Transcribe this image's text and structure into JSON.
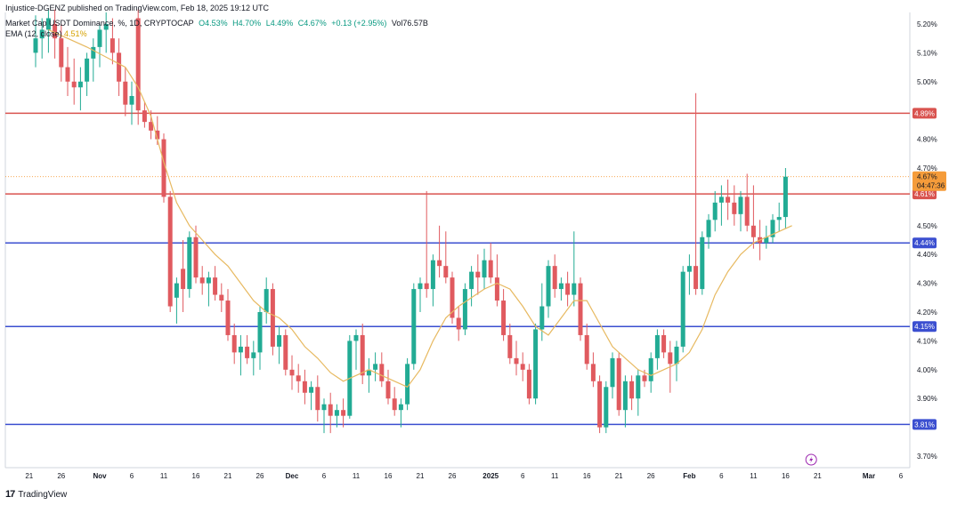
{
  "header": {
    "published": "Injustice-DGENZ published on TradingView.com, Feb 18, 2025 19:12 UTC"
  },
  "legend": {
    "title": "Market Cap USDT Dominance, %, 1D, CRYPTOCAP",
    "open": "O4.53%",
    "high": "H4.70%",
    "low": "L4.49%",
    "close": "C4.67%",
    "change": "+0.13 (+2.95%)",
    "volume": "Vol76.57B",
    "ema_label": "EMA (12, close)",
    "ema_value": "4.51%"
  },
  "footer": {
    "brand": "TradingView",
    "logo": "17"
  },
  "colors": {
    "up": "#22ab94",
    "down": "#e05a5f",
    "ema": "#e7b960",
    "resistance": "#d9534f",
    "support": "#3b4fd0",
    "price_badge": "#f59c3a",
    "axis_text": "#131722"
  },
  "chart_data": {
    "type": "candlestick",
    "ylim": [
      3.66,
      5.24
    ],
    "y_ticks": [
      "5.20%",
      "5.10%",
      "5.00%",
      "4.80%",
      "4.70%",
      "4.50%",
      "4.40%",
      "4.30%",
      "4.20%",
      "4.10%",
      "4.00%",
      "3.90%",
      "3.70%"
    ],
    "y_tick_values": [
      5.2,
      5.1,
      5.0,
      4.8,
      4.7,
      4.5,
      4.4,
      4.3,
      4.2,
      4.1,
      4.0,
      3.9,
      3.7
    ],
    "x_ticks": [
      {
        "label": "21",
        "day": -1
      },
      {
        "label": "26",
        "day": 4
      },
      {
        "label": "Nov",
        "day": 10,
        "bold": true
      },
      {
        "label": "6",
        "day": 15
      },
      {
        "label": "11",
        "day": 20
      },
      {
        "label": "16",
        "day": 25
      },
      {
        "label": "21",
        "day": 30
      },
      {
        "label": "26",
        "day": 35
      },
      {
        "label": "Dec",
        "day": 40,
        "bold": true
      },
      {
        "label": "6",
        "day": 45
      },
      {
        "label": "11",
        "day": 50
      },
      {
        "label": "16",
        "day": 55
      },
      {
        "label": "21",
        "day": 60
      },
      {
        "label": "26",
        "day": 65
      },
      {
        "label": "2025",
        "day": 71,
        "bold": true
      },
      {
        "label": "6",
        "day": 76
      },
      {
        "label": "11",
        "day": 81
      },
      {
        "label": "16",
        "day": 86
      },
      {
        "label": "21",
        "day": 91
      },
      {
        "label": "26",
        "day": 96
      },
      {
        "label": "Feb",
        "day": 102,
        "bold": true
      },
      {
        "label": "6",
        "day": 107
      },
      {
        "label": "11",
        "day": 112
      },
      {
        "label": "16",
        "day": 117
      },
      {
        "label": "21",
        "day": 122
      },
      {
        "label": "Mar",
        "day": 130,
        "bold": true
      },
      {
        "label": "6",
        "day": 135
      }
    ],
    "levels": [
      {
        "value": 4.89,
        "label": "4.89%",
        "kind": "resistance"
      },
      {
        "value": 4.61,
        "label": "4.61%",
        "kind": "resistance"
      },
      {
        "value": 4.44,
        "label": "4.44%",
        "kind": "support"
      },
      {
        "value": 4.15,
        "label": "4.15%",
        "kind": "support"
      },
      {
        "value": 3.81,
        "label": "3.81%",
        "kind": "support"
      }
    ],
    "current_price": {
      "value": 4.67,
      "label": "4.67%",
      "countdown": "04:47:36"
    },
    "candles": [
      [
        5.1,
        5.23,
        5.05,
        5.15
      ],
      [
        5.15,
        5.22,
        5.08,
        5.18
      ],
      [
        5.18,
        5.25,
        5.1,
        5.22
      ],
      [
        5.2,
        5.25,
        5.08,
        5.15
      ],
      [
        5.15,
        5.2,
        5.0,
        5.05
      ],
      [
        5.05,
        5.12,
        4.95,
        5.0
      ],
      [
        5.0,
        5.08,
        4.92,
        4.98
      ],
      [
        4.98,
        5.05,
        4.9,
        5.0
      ],
      [
        5.0,
        5.1,
        4.95,
        5.08
      ],
      [
        5.08,
        5.15,
        5.0,
        5.12
      ],
      [
        5.12,
        5.2,
        5.05,
        5.18
      ],
      [
        5.18,
        5.24,
        5.1,
        5.2
      ],
      [
        5.15,
        5.22,
        5.06,
        5.1
      ],
      [
        5.1,
        5.15,
        4.95,
        5.0
      ],
      [
        5.0,
        5.05,
        4.88,
        4.92
      ],
      [
        4.92,
        5.0,
        4.85,
        4.95
      ],
      [
        5.22,
        5.25,
        4.85,
        4.9
      ],
      [
        4.9,
        4.93,
        4.84,
        4.86
      ],
      [
        4.86,
        4.9,
        4.8,
        4.83
      ],
      [
        4.83,
        4.88,
        4.78,
        4.8
      ],
      [
        4.8,
        4.82,
        4.58,
        4.6
      ],
      [
        4.6,
        4.62,
        4.2,
        4.22
      ],
      [
        4.25,
        4.32,
        4.16,
        4.3
      ],
      [
        4.35,
        4.45,
        4.2,
        4.28
      ],
      [
        4.28,
        4.48,
        4.25,
        4.46
      ],
      [
        4.46,
        4.5,
        4.3,
        4.32
      ],
      [
        4.32,
        4.36,
        4.26,
        4.3
      ],
      [
        4.3,
        4.34,
        4.22,
        4.32
      ],
      [
        4.32,
        4.36,
        4.24,
        4.26
      ],
      [
        4.26,
        4.3,
        4.2,
        4.24
      ],
      [
        4.24,
        4.28,
        4.1,
        4.12
      ],
      [
        4.12,
        4.16,
        4.02,
        4.06
      ],
      [
        4.06,
        4.12,
        3.98,
        4.08
      ],
      [
        4.08,
        4.12,
        4.02,
        4.04
      ],
      [
        4.04,
        4.1,
        3.98,
        4.06
      ],
      [
        4.06,
        4.22,
        4.0,
        4.2
      ],
      [
        4.2,
        4.32,
        4.16,
        4.28
      ],
      [
        4.28,
        4.3,
        4.05,
        4.08
      ],
      [
        4.08,
        4.15,
        4.02,
        4.12
      ],
      [
        4.12,
        4.14,
        3.98,
        4.0
      ],
      [
        4.0,
        4.05,
        3.93,
        3.98
      ],
      [
        3.98,
        4.02,
        3.92,
        3.96
      ],
      [
        3.96,
        4.0,
        3.88,
        3.92
      ],
      [
        3.92,
        3.96,
        3.86,
        3.94
      ],
      [
        3.94,
        3.98,
        3.82,
        3.86
      ],
      [
        3.86,
        3.9,
        3.78,
        3.88
      ],
      [
        3.88,
        3.92,
        3.78,
        3.84
      ],
      [
        3.84,
        3.88,
        3.8,
        3.86
      ],
      [
        3.86,
        3.9,
        3.8,
        3.84
      ],
      [
        3.84,
        4.12,
        3.83,
        4.1
      ],
      [
        4.1,
        4.14,
        4.0,
        4.12
      ],
      [
        4.12,
        4.16,
        3.95,
        3.98
      ],
      [
        3.98,
        4.04,
        3.92,
        4.0
      ],
      [
        4.0,
        4.06,
        3.96,
        4.02
      ],
      [
        4.02,
        4.06,
        3.94,
        3.96
      ],
      [
        3.96,
        4.0,
        3.88,
        3.9
      ],
      [
        3.9,
        3.94,
        3.84,
        3.86
      ],
      [
        3.86,
        3.9,
        3.8,
        3.88
      ],
      [
        3.88,
        4.04,
        3.86,
        4.02
      ],
      [
        4.02,
        4.3,
        4.0,
        4.28
      ],
      [
        4.28,
        4.32,
        4.2,
        4.3
      ],
      [
        4.3,
        4.62,
        4.25,
        4.28
      ],
      [
        4.28,
        4.4,
        4.22,
        4.38
      ],
      [
        4.38,
        4.5,
        4.32,
        4.36
      ],
      [
        4.36,
        4.48,
        4.3,
        4.32
      ],
      [
        4.32,
        4.34,
        4.16,
        4.18
      ],
      [
        4.18,
        4.22,
        4.1,
        4.14
      ],
      [
        4.14,
        4.3,
        4.12,
        4.28
      ],
      [
        4.28,
        4.36,
        4.22,
        4.34
      ],
      [
        4.34,
        4.4,
        4.26,
        4.32
      ],
      [
        4.32,
        4.42,
        4.28,
        4.38
      ],
      [
        4.38,
        4.44,
        4.3,
        4.32
      ],
      [
        4.32,
        4.4,
        4.22,
        4.24
      ],
      [
        4.24,
        4.28,
        4.1,
        4.12
      ],
      [
        4.12,
        4.16,
        4.02,
        4.04
      ],
      [
        4.04,
        4.1,
        3.98,
        4.02
      ],
      [
        4.02,
        4.06,
        3.96,
        4.0
      ],
      [
        4.0,
        4.02,
        3.88,
        3.9
      ],
      [
        3.9,
        4.16,
        3.88,
        4.14
      ],
      [
        4.14,
        4.3,
        4.1,
        4.22
      ],
      [
        4.22,
        4.38,
        4.18,
        4.36
      ],
      [
        4.36,
        4.4,
        4.25,
        4.28
      ],
      [
        4.28,
        4.32,
        4.24,
        4.3
      ],
      [
        4.3,
        4.34,
        4.22,
        4.26
      ],
      [
        4.26,
        4.48,
        4.22,
        4.3
      ],
      [
        4.3,
        4.32,
        4.1,
        4.12
      ],
      [
        4.12,
        4.16,
        4.0,
        4.02
      ],
      [
        4.02,
        4.06,
        3.94,
        3.96
      ],
      [
        3.96,
        3.98,
        3.78,
        3.8
      ],
      [
        3.8,
        3.96,
        3.78,
        3.94
      ],
      [
        3.94,
        4.06,
        3.9,
        4.04
      ],
      [
        4.04,
        4.06,
        3.84,
        3.86
      ],
      [
        3.86,
        3.98,
        3.8,
        3.96
      ],
      [
        3.96,
        3.98,
        3.86,
        3.9
      ],
      [
        3.9,
        4.0,
        3.84,
        3.98
      ],
      [
        3.98,
        4.0,
        3.94,
        3.96
      ],
      [
        3.96,
        4.06,
        3.92,
        4.04
      ],
      [
        4.04,
        4.14,
        4.0,
        4.12
      ],
      [
        4.12,
        4.14,
        4.04,
        4.06
      ],
      [
        4.06,
        4.1,
        3.92,
        4.02
      ],
      [
        4.02,
        4.1,
        3.96,
        4.08
      ],
      [
        4.08,
        4.36,
        4.06,
        4.34
      ],
      [
        4.34,
        4.4,
        4.26,
        4.36
      ],
      [
        4.36,
        4.96,
        4.26,
        4.28
      ],
      [
        4.28,
        4.48,
        4.26,
        4.46
      ],
      [
        4.46,
        4.54,
        4.42,
        4.52
      ],
      [
        4.52,
        4.62,
        4.48,
        4.58
      ],
      [
        4.58,
        4.64,
        4.5,
        4.6
      ],
      [
        4.6,
        4.66,
        4.52,
        4.58
      ],
      [
        4.58,
        4.64,
        4.5,
        4.54
      ],
      [
        4.54,
        4.62,
        4.48,
        4.6
      ],
      [
        4.6,
        4.68,
        4.48,
        4.5
      ],
      [
        4.5,
        4.64,
        4.42,
        4.46
      ],
      [
        4.46,
        4.52,
        4.38,
        4.44
      ],
      [
        4.44,
        4.5,
        4.42,
        4.46
      ],
      [
        4.46,
        4.54,
        4.44,
        4.52
      ],
      [
        4.52,
        4.58,
        4.48,
        4.53
      ],
      [
        4.53,
        4.7,
        4.49,
        4.67
      ]
    ],
    "ema": [
      [
        2,
        5.18
      ],
      [
        8,
        5.12
      ],
      [
        14,
        5.05
      ],
      [
        16,
        4.98
      ],
      [
        18,
        4.88
      ],
      [
        20,
        4.72
      ],
      [
        22,
        4.58
      ],
      [
        24,
        4.5
      ],
      [
        26,
        4.45
      ],
      [
        28,
        4.4
      ],
      [
        30,
        4.36
      ],
      [
        32,
        4.3
      ],
      [
        34,
        4.24
      ],
      [
        36,
        4.2
      ],
      [
        38,
        4.18
      ],
      [
        40,
        4.14
      ],
      [
        42,
        4.08
      ],
      [
        44,
        4.04
      ],
      [
        46,
        3.99
      ],
      [
        48,
        3.96
      ],
      [
        50,
        3.98
      ],
      [
        52,
        4.0
      ],
      [
        54,
        3.98
      ],
      [
        56,
        3.96
      ],
      [
        58,
        3.94
      ],
      [
        60,
        4.0
      ],
      [
        62,
        4.1
      ],
      [
        64,
        4.18
      ],
      [
        66,
        4.22
      ],
      [
        68,
        4.25
      ],
      [
        70,
        4.28
      ],
      [
        72,
        4.3
      ],
      [
        74,
        4.28
      ],
      [
        76,
        4.22
      ],
      [
        78,
        4.15
      ],
      [
        80,
        4.12
      ],
      [
        82,
        4.18
      ],
      [
        84,
        4.24
      ],
      [
        86,
        4.24
      ],
      [
        88,
        4.16
      ],
      [
        90,
        4.08
      ],
      [
        92,
        4.04
      ],
      [
        94,
        4.0
      ],
      [
        96,
        3.98
      ],
      [
        98,
        4.0
      ],
      [
        100,
        4.02
      ],
      [
        102,
        4.06
      ],
      [
        104,
        4.14
      ],
      [
        106,
        4.26
      ],
      [
        108,
        4.34
      ],
      [
        110,
        4.4
      ],
      [
        112,
        4.44
      ],
      [
        114,
        4.46
      ],
      [
        116,
        4.48
      ],
      [
        118,
        4.5
      ]
    ]
  }
}
